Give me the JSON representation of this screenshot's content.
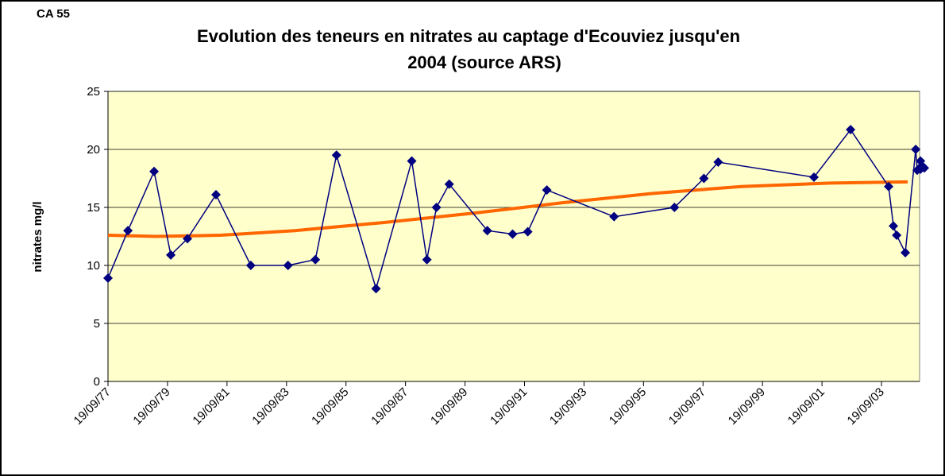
{
  "chart_data": {
    "type": "line",
    "tag": "CA 55",
    "title": [
      "Evolution des teneurs en nitrates au captage d'Ecouviez jusqu'en",
      "2004 (source ARS)"
    ],
    "ylabel": "nitrates mg/l",
    "x": [
      1977.72,
      1978.39,
      1979.27,
      1979.83,
      1980.39,
      1981.35,
      1982.52,
      1983.77,
      1984.69,
      1985.4,
      1986.73,
      1987.93,
      1988.44,
      1988.76,
      1989.19,
      1990.47,
      1991.32,
      1991.83,
      1992.47,
      1994.73,
      1996.76,
      1997.75,
      1998.23,
      2001.45,
      2002.68,
      2003.96,
      2004.12,
      2004.23,
      2004.52,
      2004.87,
      2004.92,
      2005.03,
      2005.08,
      2005.16,
      2005.03
    ],
    "series": [
      {
        "color": "#000080",
        "values": [
          8.9,
          13,
          18.1,
          10.9,
          12.3,
          16.1,
          10,
          10,
          10.5,
          19.5,
          8,
          19,
          10.5,
          15,
          17,
          13,
          12.7,
          12.9,
          16.5,
          14.2,
          15,
          17.5,
          18.9,
          17.6,
          21.7,
          16.8,
          13.4,
          12.6,
          11.1,
          20,
          18.2,
          19,
          18.6,
          18.4,
          18.3
        ]
      }
    ],
    "trend": {
      "color": "#ff6600",
      "x": [
        1977.72,
        1979.3,
        1981.5,
        1984,
        1987,
        1990,
        1993,
        1996,
        1999,
        2002,
        2004.6
      ],
      "values": [
        12.6,
        12.5,
        12.6,
        13,
        13.7,
        14.5,
        15.4,
        16.2,
        16.8,
        17.1,
        17.2
      ]
    },
    "xlim": [
      1977.72,
      2005.0
    ],
    "xticks": [
      {
        "value": 1977.72,
        "label": "19/09/77"
      },
      {
        "value": 1979.72,
        "label": "19/09/79"
      },
      {
        "value": 1981.72,
        "label": "19/09/81"
      },
      {
        "value": 1983.72,
        "label": "19/09/83"
      },
      {
        "value": 1985.72,
        "label": "19/09/85"
      },
      {
        "value": 1987.72,
        "label": "19/09/87"
      },
      {
        "value": 1989.72,
        "label": "19/09/89"
      },
      {
        "value": 1991.72,
        "label": "19/09/91"
      },
      {
        "value": 1993.72,
        "label": "19/09/93"
      },
      {
        "value": 1995.72,
        "label": "19/09/95"
      },
      {
        "value": 1997.72,
        "label": "19/09/97"
      },
      {
        "value": 1999.72,
        "label": "19/09/99"
      },
      {
        "value": 2001.72,
        "label": "19/09/01"
      },
      {
        "value": 2003.72,
        "label": "19/09/03"
      }
    ],
    "ylim": [
      0,
      25
    ],
    "yticks": [
      0,
      5,
      10,
      15,
      20,
      25
    ],
    "grid": true,
    "background": "#ffffcc"
  }
}
